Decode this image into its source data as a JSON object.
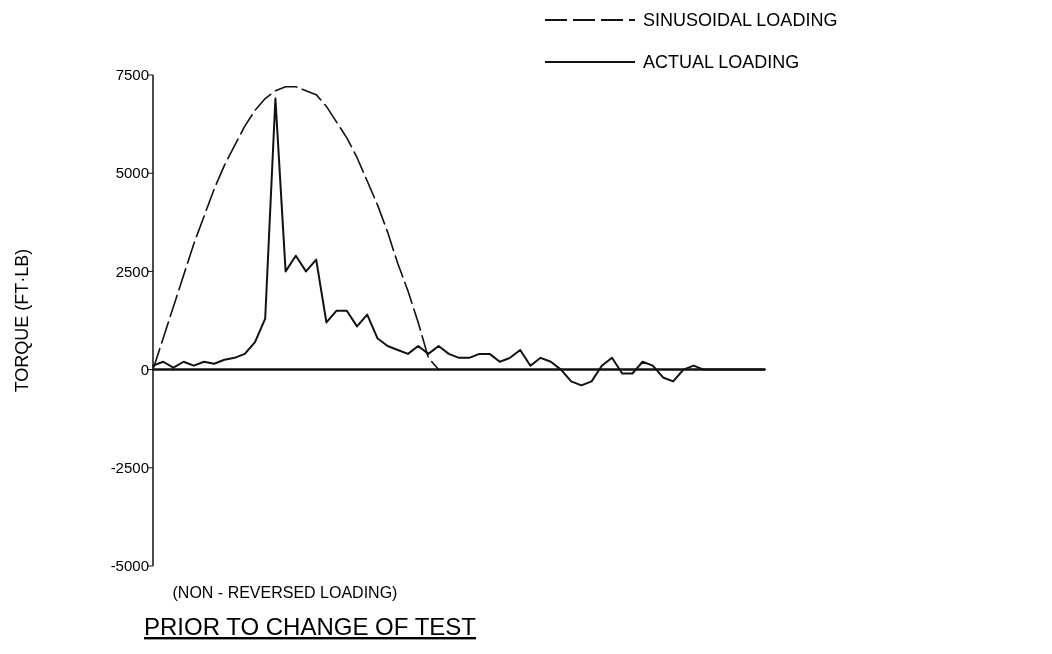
{
  "chart_data": {
    "type": "line",
    "title": "PRIOR TO CHANGE OF TEST",
    "xlabel": "(NON - REVERSED LOADING)",
    "ylabel": "TORQUE (FT·LB)",
    "categories": [
      null,
      null,
      null,
      null,
      null,
      null,
      null,
      null,
      null,
      null,
      null,
      null,
      null,
      null,
      null,
      null,
      null,
      null,
      null,
      null,
      null,
      null,
      null,
      null,
      null,
      null,
      null,
      null,
      null,
      null,
      null,
      null,
      null,
      null,
      null,
      null,
      null,
      null,
      null,
      null,
      null,
      null,
      null,
      null,
      null,
      null,
      null,
      null,
      null,
      null,
      null,
      null,
      null,
      null,
      null,
      null,
      null,
      null,
      null,
      null,
      null
    ],
    "series": [
      {
        "name": "SINUSOIDAL LOADING",
        "color": "#111111",
        "line_style": "dashed",
        "values": [
          0,
          800,
          1600,
          2400,
          3200,
          3900,
          4600,
          5200,
          5700,
          6200,
          6600,
          6900,
          7100,
          7200,
          7200,
          7100,
          7000,
          6700,
          6300,
          5900,
          5400,
          4800,
          4200,
          3500,
          2700,
          2000,
          1200,
          300,
          0,
          null,
          null,
          null,
          null,
          null,
          null,
          null,
          null,
          null,
          null,
          null,
          null,
          null,
          null,
          null,
          null,
          null,
          null,
          null,
          null,
          null,
          null,
          null,
          null,
          null,
          null,
          null,
          null,
          null,
          null,
          null,
          null
        ]
      },
      {
        "name": "ACTUAL LOADING",
        "color": "#111111",
        "line_style": "solid",
        "values": [
          100,
          200,
          50,
          200,
          100,
          200,
          150,
          250,
          300,
          400,
          700,
          1300,
          6900,
          2500,
          2900,
          2500,
          2800,
          1200,
          1500,
          1500,
          1100,
          1400,
          800,
          600,
          500,
          400,
          600,
          400,
          600,
          400,
          300,
          300,
          400,
          400,
          200,
          300,
          500,
          100,
          300,
          200,
          0,
          -300,
          -400,
          -300,
          100,
          300,
          -100,
          -100,
          200,
          100,
          -200,
          -300,
          0,
          100,
          0,
          0,
          0,
          0,
          0,
          0,
          0
        ]
      }
    ],
    "ylim": [
      -5000,
      7500
    ],
    "yticks": [
      -5000,
      -2500,
      0,
      2500,
      5000,
      7500
    ],
    "tick_labels": "y",
    "legend": "top right"
  }
}
